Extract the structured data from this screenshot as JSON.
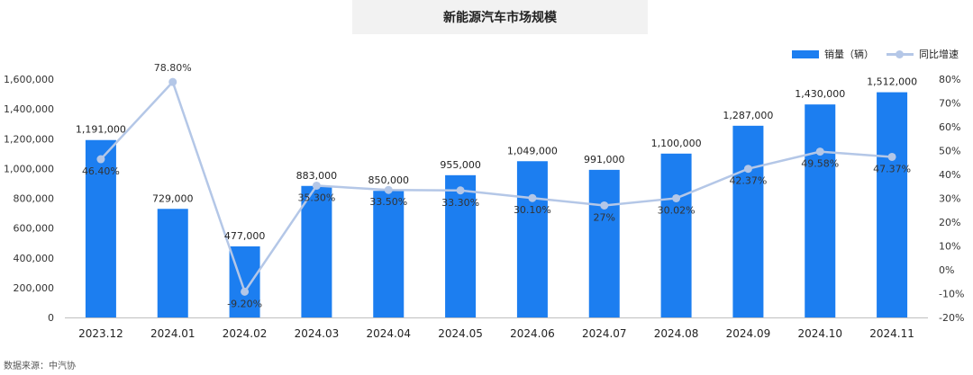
{
  "chart_data": {
    "type": "bar",
    "title": "新能源汽车市场规模",
    "categories": [
      "2023.12",
      "2024.01",
      "2024.02",
      "2024.03",
      "2024.04",
      "2024.05",
      "2024.06",
      "2024.07",
      "2024.08",
      "2024.09",
      "2024.10",
      "2024.11"
    ],
    "series": [
      {
        "name": "销量（辆）",
        "type": "bar",
        "axis": "left",
        "color": "#1c7ef0",
        "values": [
          1191000,
          729000,
          477000,
          883000,
          850000,
          955000,
          1049000,
          991000,
          1100000,
          1287000,
          1430000,
          1512000
        ],
        "labels": [
          "1,191,000",
          "729,000",
          "477,000",
          "883,000",
          "850,000",
          "955,000",
          "1,049,000",
          "991,000",
          "1,100,000",
          "1,287,000",
          "1,430,000",
          "1,512,000"
        ]
      },
      {
        "name": "同比增速",
        "type": "line",
        "axis": "right",
        "color": "#b4c7e7",
        "values": [
          46.4,
          78.8,
          -9.2,
          35.3,
          33.5,
          33.3,
          30.1,
          27,
          30.02,
          42.37,
          49.58,
          47.37
        ],
        "labels": [
          "46.40%",
          "78.80%",
          "-9.20%",
          "35.30%",
          "33.50%",
          "33.30%",
          "30.10%",
          "27%",
          "30.02%",
          "42.37%",
          "49.58%",
          "47.37%"
        ]
      }
    ],
    "y_left": {
      "min": 0,
      "max": 1600000,
      "step": 200000,
      "tick_labels": [
        "0",
        "200,000",
        "400,000",
        "600,000",
        "800,000",
        "1,000,000",
        "1,200,000",
        "1,400,000",
        "1,600,000"
      ]
    },
    "y_right": {
      "min": -20,
      "max": 80,
      "step": 10,
      "tick_labels": [
        "-20%",
        "-10%",
        "0%",
        "10%",
        "20%",
        "30%",
        "40%",
        "50%",
        "60%",
        "70%",
        "80%"
      ]
    },
    "grid": false,
    "legend_position": "top-right"
  },
  "source_text": "数据来源：中汽协"
}
